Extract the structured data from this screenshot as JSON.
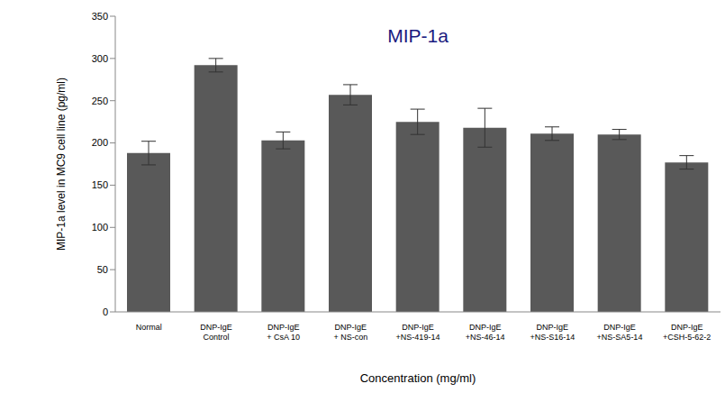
{
  "chart_data": {
    "type": "bar",
    "title": "MIP-1a",
    "x_label": "Concentration (mg/ml)",
    "y_label": "MIP-1a level in MC9 cell line (pg/ml)",
    "categories": [
      "Normal",
      "DNP-IgE Control",
      "DNP-IgE + CsA 10",
      "DNP-IgE + NS-con",
      "DNP-IgE +NS-419-14",
      "DNP-IgE +NS-46-14",
      "DNP-IgE +NS-S16-14",
      "DNP-IgE +NS-SA5-14",
      "DNP-IgE +CSH-5-62-2"
    ],
    "values": [
      188,
      292,
      203,
      257,
      225,
      218,
      211,
      210,
      177
    ],
    "errors": [
      14,
      8,
      10,
      12,
      15,
      23,
      8,
      6,
      8
    ],
    "color": "#595959",
    "ylim": [
      0,
      350
    ],
    "yticks": [
      0,
      50,
      100,
      150,
      200,
      250,
      300,
      350
    ],
    "grid": false
  }
}
